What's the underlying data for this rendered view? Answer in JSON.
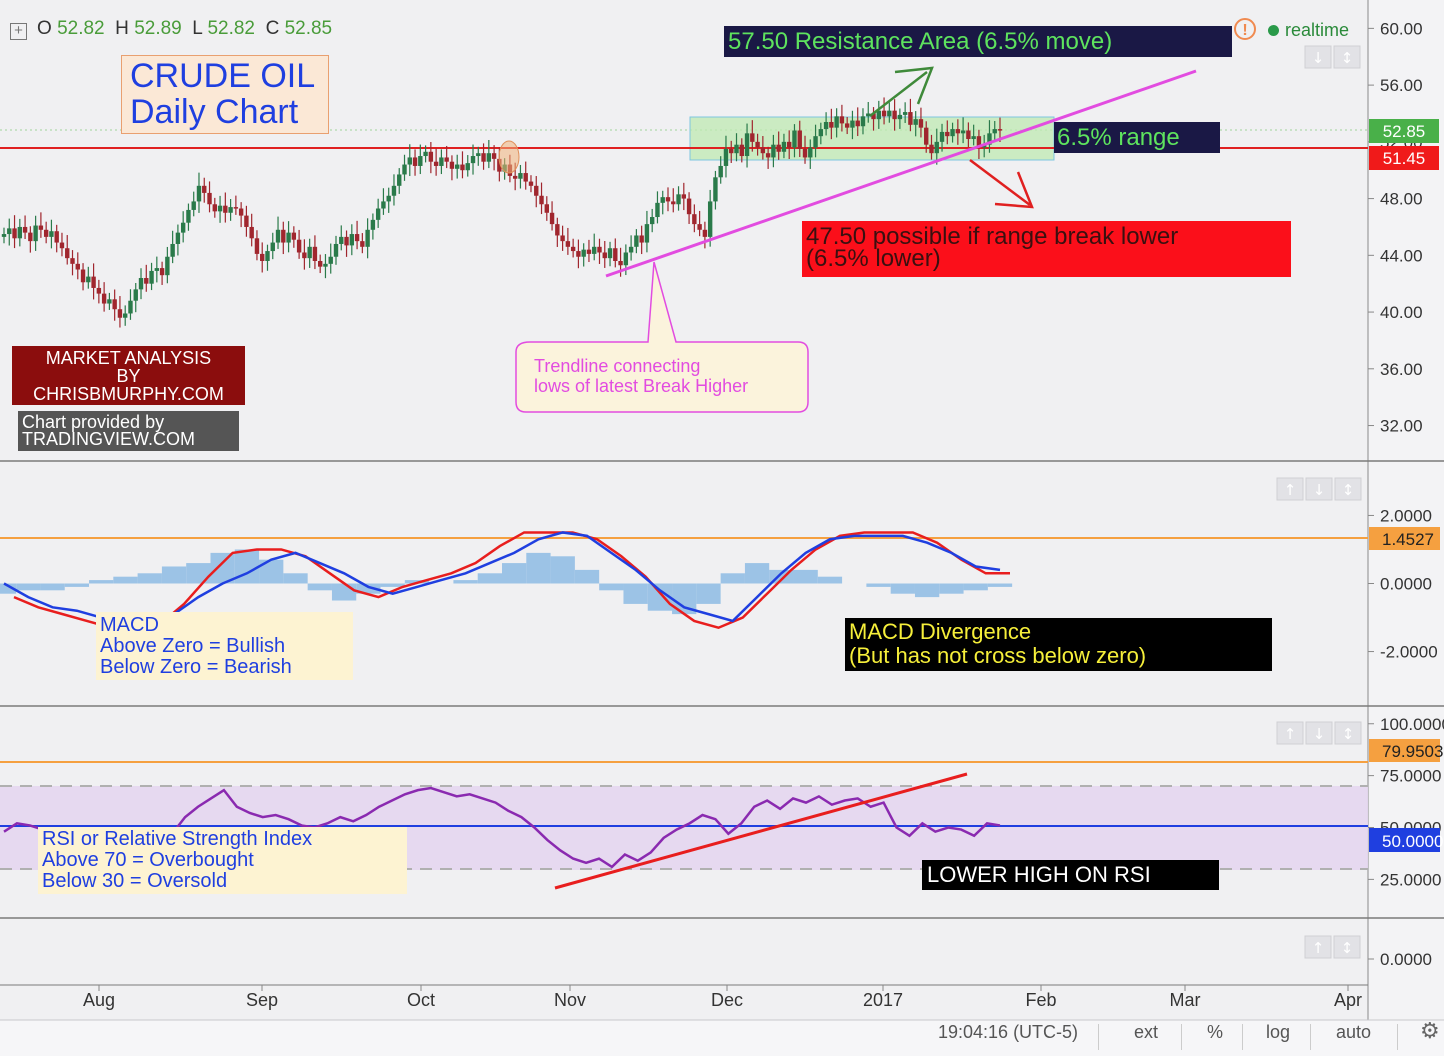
{
  "header": {
    "o_label": "O",
    "o_value": "52.82",
    "h_label": "H",
    "h_value": "52.89",
    "l_label": "L",
    "l_value": "52.82",
    "c_label": "C",
    "c_value": "52.85",
    "realtime": "realtime",
    "alert_glyph": "!"
  },
  "annotations": {
    "title_line1": "CRUDE OIL",
    "title_line2": "Daily Chart",
    "resistance": "57.50  Resistance Area (6.5% move)",
    "range": "6.5% range",
    "break_lower_line1": "47.50 possible if range break lower",
    "break_lower_line2": "(6.5% lower)",
    "market_line1": "MARKET ANALYSIS",
    "market_line2": "BY",
    "market_line3": "CHRISBMURPHY.COM",
    "provided_line1": "Chart provided by",
    "provided_line2": "TRADINGVIEW.COM",
    "trendline_line1": "Trendline connecting",
    "trendline_line2": "lows of latest Break Higher",
    "macd_line1": "MACD",
    "macd_line2": "Above Zero = Bullish",
    "macd_line3": "Below Zero = Bearish",
    "divergence_line1": "MACD Divergence",
    "divergence_line2": "(But has not cross below zero)",
    "rsi_line1": "RSI or Relative Strength Index",
    "rsi_line2": "Above 70 = Overbought",
    "rsi_line3": "Below 30 = Oversold",
    "lower_high": "LOWER HIGH ON RSI"
  },
  "bottom_bar": {
    "time": "19:04:16 (UTC-5)",
    "ext": "ext",
    "percent": "%",
    "log": "log",
    "auto": "auto"
  },
  "colors": {
    "up": "#2a7a4a",
    "down": "#a0262e",
    "support": "#e02020",
    "trend": "#e24ce0",
    "macd": "#1f3fe0",
    "signal": "#e81e1e",
    "hist": "#9cc3e6",
    "rsi": "#8a2ab0",
    "orange": "#f5a040"
  },
  "chart_data": {
    "type": "candlestick",
    "title": "CRUDE OIL Daily Chart",
    "x_tick_labels": [
      "Aug",
      "Sep",
      "Oct",
      "Nov",
      "Dec",
      "2017",
      "Feb",
      "Mar",
      "Apr"
    ],
    "price_axis": {
      "ticks": [
        "60.00",
        "56.00",
        "52.00",
        "48.00",
        "44.00",
        "40.00",
        "36.00",
        "32.00"
      ],
      "range": [
        29.5,
        62
      ],
      "last_price": "52.85",
      "support_label": "51.45",
      "support_level": 51.45,
      "resistance_target": 57.5,
      "downside_target": 47.5,
      "range_box": [
        51.0,
        55.5
      ]
    },
    "price_closes": [
      45.5,
      45.9,
      45.2,
      46.0,
      45.6,
      45.0,
      46.1,
      45.8,
      45.3,
      45.7,
      44.9,
      44.5,
      43.8,
      43.4,
      43.0,
      42.1,
      42.5,
      41.7,
      41.3,
      40.6,
      40.9,
      40.2,
      39.6,
      39.9,
      40.8,
      41.6,
      42.4,
      42.0,
      42.9,
      43.1,
      42.6,
      43.9,
      44.8,
      45.6,
      46.3,
      47.2,
      47.8,
      48.9,
      48.4,
      47.6,
      47.1,
      47.5,
      47.0,
      47.4,
      47.3,
      46.8,
      46.0,
      45.2,
      44.1,
      43.6,
      44.3,
      44.9,
      45.8,
      44.9,
      45.6,
      45.1,
      44.2,
      43.8,
      44.6,
      43.6,
      43.2,
      43.4,
      43.9,
      44.8,
      45.3,
      44.7,
      45.5,
      45.0,
      44.6,
      45.8,
      46.5,
      47.3,
      47.8,
      48.2,
      48.9,
      49.7,
      50.4,
      50.9,
      50.3,
      51.0,
      51.3,
      50.6,
      50.3,
      50.9,
      50.6,
      50.1,
      50.4,
      50.0,
      50.5,
      51.0,
      51.2,
      50.6,
      51.2,
      50.8,
      49.9,
      50.4,
      49.6,
      49.4,
      49.8,
      49.2,
      48.9,
      48.2,
      47.6,
      47.0,
      46.2,
      45.4,
      45.0,
      44.6,
      44.3,
      43.9,
      44.4,
      44.1,
      44.6,
      44.2,
      43.8,
      44.5,
      43.6,
      43.3,
      44.2,
      44.6,
      45.4,
      44.9,
      46.2,
      46.7,
      47.7,
      48.1,
      47.8,
      47.6,
      48.3,
      48.0,
      46.9,
      46.2,
      45.8,
      45.3,
      47.8,
      49.5,
      50.3,
      51.5,
      51.2,
      51.8,
      51.0,
      52.6,
      52.0,
      51.6,
      51.2,
      50.9,
      51.8,
      51.3,
      52.0,
      51.6,
      52.8,
      51.5,
      50.9,
      51.6,
      52.4,
      52.9,
      53.4,
      53.0,
      53.8,
      53.3,
      53.0,
      53.5,
      53.1,
      53.8,
      54.0,
      53.6,
      54.2,
      53.8,
      54.2,
      53.6,
      53.9,
      54.1,
      53.2,
      53.6,
      53.0,
      51.8,
      51.2,
      52.0,
      52.7,
      52.4,
      52.9,
      52.6,
      52.8,
      52.2,
      52.4,
      51.6,
      51.8,
      52.6,
      52.9,
      52.8
    ],
    "macd_axis": {
      "ticks": [
        "2.0000",
        "0.0000",
        "-2.0000"
      ],
      "range": [
        -3.6,
        3.6
      ],
      "signal_label": "1.4527",
      "signal_level": 1.4527
    },
    "macd": {
      "macd": [
        0,
        -0.4,
        -0.7,
        -0.8,
        -1.0,
        -1.2,
        -1.3,
        -0.9,
        -0.4,
        0.0,
        0.3,
        0.7,
        0.9,
        0.6,
        0.3,
        -0.1,
        -0.3,
        -0.1,
        0.1,
        0.3,
        0.6,
        0.9,
        1.3,
        1.5,
        1.4,
        0.9,
        0.4,
        -0.2,
        -0.7,
        -0.9,
        -1.1,
        -0.4,
        0.3,
        0.9,
        1.3,
        1.4,
        1.4,
        1.4,
        1.2,
        0.9,
        0.5,
        0.4
      ],
      "signal": [
        -0.4,
        -0.7,
        -0.9,
        -1.1,
        -1.3,
        -1.3,
        -1.2,
        -0.6,
        0.2,
        0.9,
        1.0,
        1.0,
        0.8,
        0.3,
        -0.2,
        -0.4,
        -0.1,
        0.1,
        0.3,
        0.6,
        1.1,
        1.5,
        1.5,
        1.5,
        1.3,
        0.8,
        0.2,
        -0.6,
        -1.1,
        -1.3,
        -1.0,
        -0.3,
        0.4,
        1.0,
        1.4,
        1.5,
        1.5,
        1.5,
        1.2,
        0.7,
        0.3,
        0.3
      ],
      "histogram": [
        -0.3,
        -0.2,
        -0.2,
        -0.1,
        0.1,
        0.2,
        0.3,
        0.5,
        0.6,
        0.9,
        1.0,
        0.7,
        0.3,
        -0.2,
        -0.5,
        -0.3,
        -0.1,
        0.1,
        0.0,
        0.1,
        0.3,
        0.6,
        0.9,
        0.8,
        0.4,
        -0.2,
        -0.6,
        -0.8,
        -0.9,
        -0.6,
        0.3,
        0.6,
        0.4,
        0.4,
        0.2,
        0.0,
        -0.1,
        -0.3,
        -0.4,
        -0.3,
        -0.2,
        -0.1
      ]
    },
    "rsi_axis": {
      "ticks": [
        "100.0000",
        "75.0000",
        "50.0000",
        "25.0000"
      ],
      "range": [
        0,
        100
      ],
      "overbought": 70,
      "oversold": 30,
      "upper_label": "79.9503",
      "upper_level": 80,
      "mid_label": "50.0000",
      "mid_level": 50
    },
    "rsi": [
      48,
      52,
      51,
      49,
      47,
      45,
      43,
      42,
      40,
      38,
      39,
      41,
      44,
      47,
      55,
      60,
      64,
      68,
      60,
      57,
      55,
      56,
      54,
      51,
      50,
      52,
      55,
      53,
      56,
      60,
      63,
      66,
      68,
      69,
      67,
      65,
      66,
      64,
      62,
      58,
      55,
      50,
      44,
      39,
      35,
      33,
      35,
      31,
      37,
      34,
      38,
      45,
      49,
      52,
      56,
      54,
      47,
      52,
      60,
      63,
      59,
      64,
      62,
      65,
      61,
      63,
      64,
      60,
      62,
      50,
      46,
      52,
      48,
      50,
      49,
      46,
      52,
      51
    ],
    "lower_axis": {
      "ticks": [
        "0.0000"
      ]
    }
  }
}
